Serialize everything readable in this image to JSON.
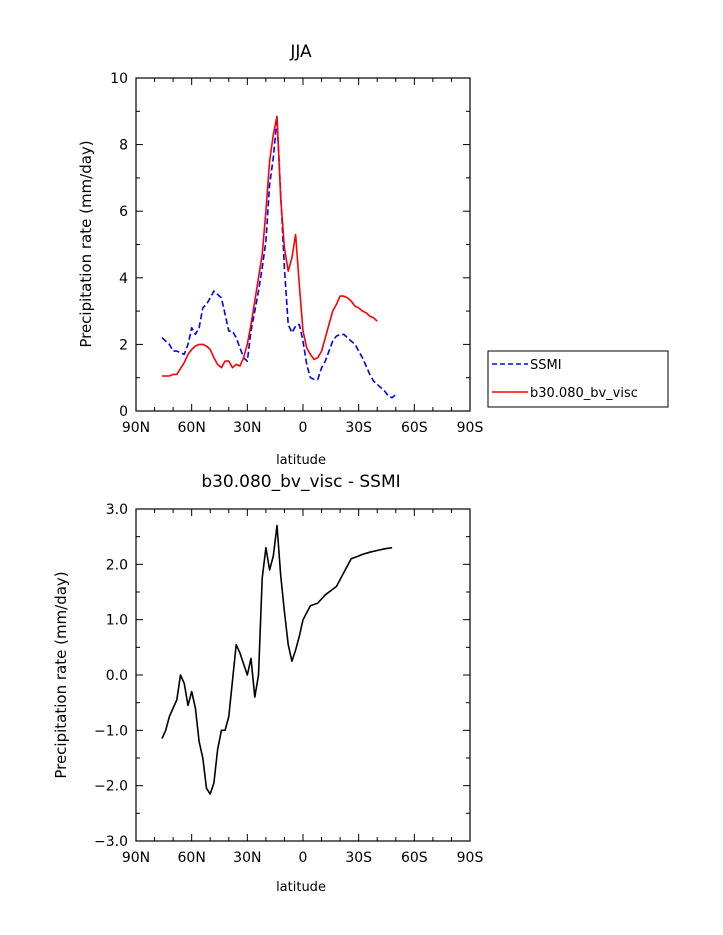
{
  "chart_data": [
    {
      "type": "line",
      "title": "JJA",
      "xlabel": "latitude",
      "ylabel": "Precipitation rate (mm/day)",
      "xlim": [
        90,
        -90
      ],
      "ylim": [
        0,
        10
      ],
      "x_ticks": [
        {
          "value": 90,
          "label": "90N"
        },
        {
          "value": 60,
          "label": "60N"
        },
        {
          "value": 30,
          "label": "30N"
        },
        {
          "value": 0,
          "label": "0"
        },
        {
          "value": -30,
          "label": "30S"
        },
        {
          "value": -60,
          "label": "60S"
        },
        {
          "value": -90,
          "label": "90S"
        }
      ],
      "y_ticks": [
        {
          "value": 0,
          "label": "0"
        },
        {
          "value": 2,
          "label": "2"
        },
        {
          "value": 4,
          "label": "4"
        },
        {
          "value": 6,
          "label": "6"
        },
        {
          "value": 8,
          "label": "8"
        },
        {
          "value": 10,
          "label": "10"
        }
      ],
      "legend_position": "right",
      "series": [
        {
          "name": "SSMI",
          "color": "#0000ff",
          "dash": "dashed",
          "x": [
            76,
            72,
            70,
            68,
            64,
            62,
            60,
            58,
            56,
            54,
            52,
            50,
            48,
            46,
            44,
            42,
            40,
            38,
            36,
            34,
            32,
            30,
            28,
            26,
            24,
            22,
            20,
            18,
            16,
            14,
            12,
            10,
            8,
            6,
            4,
            2,
            0,
            -2,
            -4,
            -6,
            -8,
            -10,
            -12,
            -14,
            -16,
            -18,
            -20,
            -22,
            -24,
            -26,
            -28,
            -30,
            -32,
            -34,
            -36,
            -38,
            -40,
            -42,
            -44,
            -46,
            -48,
            -50,
            -52,
            -54,
            -56,
            -58,
            -60,
            -62,
            -64,
            -66
          ],
          "values": [
            2.2,
            2.0,
            1.8,
            1.8,
            1.7,
            2.0,
            2.5,
            2.3,
            2.5,
            3.1,
            3.2,
            3.4,
            3.6,
            3.5,
            3.4,
            2.9,
            2.4,
            2.4,
            2.2,
            1.9,
            1.6,
            1.5,
            2.4,
            3.0,
            3.6,
            4.3,
            5.1,
            6.8,
            7.6,
            8.8,
            6.5,
            4.3,
            2.6,
            2.35,
            2.55,
            2.6,
            2.1,
            1.4,
            1.0,
            0.95,
            0.95,
            1.3,
            1.5,
            1.8,
            2.1,
            2.25,
            2.3,
            2.3,
            2.2,
            2.1,
            2.0,
            1.8,
            1.6,
            1.35,
            1.1,
            0.9,
            0.8,
            0.7,
            0.6,
            0.45,
            0.4,
            0.5,
            null,
            null,
            null,
            null,
            null,
            null,
            null,
            null
          ]
        },
        {
          "name": "b30.080_bv_visc",
          "color": "#ff0000",
          "dash": "solid",
          "x": [
            76,
            72,
            70,
            68,
            64,
            62,
            60,
            58,
            56,
            54,
            52,
            50,
            48,
            46,
            44,
            42,
            40,
            38,
            36,
            34,
            32,
            30,
            28,
            26,
            24,
            22,
            20,
            18,
            16,
            14,
            12,
            10,
            8,
            6,
            4,
            2,
            0,
            -2,
            -4,
            -6,
            -8,
            -10,
            -12,
            -14,
            -16,
            -18,
            -20,
            -22,
            -24,
            -26,
            -28,
            -30,
            -32,
            -34,
            -36,
            -38,
            -40,
            -42,
            -44,
            -46,
            -48,
            -50,
            -52,
            -54,
            -56,
            -58,
            -60,
            -62,
            -64,
            -66
          ],
          "values": [
            1.05,
            1.05,
            1.1,
            1.1,
            1.45,
            1.7,
            1.85,
            1.95,
            2.0,
            2.0,
            1.95,
            1.85,
            1.6,
            1.4,
            1.3,
            1.5,
            1.5,
            1.3,
            1.4,
            1.35,
            1.6,
            2.0,
            2.6,
            3.3,
            4.0,
            4.7,
            6.0,
            7.5,
            8.3,
            8.85,
            6.4,
            4.9,
            4.2,
            4.6,
            5.3,
            3.8,
            2.4,
            1.9,
            1.7,
            1.55,
            1.6,
            1.8,
            2.2,
            2.6,
            3.0,
            3.2,
            3.45,
            3.45,
            3.4,
            3.3,
            3.15,
            3.1,
            3.0,
            2.95,
            2.85,
            2.8,
            2.7,
            null,
            null,
            null,
            null,
            null,
            null,
            null,
            null,
            null,
            null,
            null,
            null,
            null
          ]
        }
      ]
    },
    {
      "type": "line",
      "title": "b30.080_bv_visc - SSMI",
      "xlabel": "latitude",
      "ylabel": "Precipitation rate (mm/day)",
      "xlim": [
        90,
        -90
      ],
      "ylim": [
        -3,
        3
      ],
      "x_ticks": [
        {
          "value": 90,
          "label": "90N"
        },
        {
          "value": 60,
          "label": "60N"
        },
        {
          "value": 30,
          "label": "30N"
        },
        {
          "value": 0,
          "label": "0"
        },
        {
          "value": -30,
          "label": "30S"
        },
        {
          "value": -60,
          "label": "60S"
        },
        {
          "value": -90,
          "label": "90S"
        }
      ],
      "y_ticks": [
        {
          "value": -3,
          "label": "−3.0"
        },
        {
          "value": -2,
          "label": "−2.0"
        },
        {
          "value": -1,
          "label": "−1.0"
        },
        {
          "value": 0,
          "label": "0.0"
        },
        {
          "value": 1,
          "label": "1.0"
        },
        {
          "value": 2,
          "label": "2.0"
        },
        {
          "value": 3,
          "label": "3.0"
        }
      ],
      "series": [
        {
          "color": "#000000",
          "dash": "solid",
          "x": [
            76,
            74,
            72,
            70,
            68,
            66,
            64,
            62,
            60,
            58,
            56,
            54,
            52,
            50,
            48,
            46,
            44,
            42,
            40,
            38,
            36,
            34,
            32,
            30,
            28,
            26,
            24,
            22,
            20,
            18,
            16,
            14,
            12,
            10,
            8,
            6,
            4,
            2,
            0,
            -4,
            -8,
            -12,
            -18,
            -22,
            -26,
            -30,
            -32,
            -34,
            -36,
            -40,
            -44,
            -48,
            -52,
            -56,
            -60,
            -64,
            -66
          ],
          "values": [
            -1.15,
            -1.0,
            -0.75,
            -0.6,
            -0.45,
            0.0,
            -0.15,
            -0.55,
            -0.3,
            -0.6,
            -1.2,
            -1.5,
            -2.05,
            -2.15,
            -1.95,
            -1.35,
            -1.0,
            -1.0,
            -0.75,
            -0.1,
            0.55,
            0.4,
            0.2,
            0.0,
            0.3,
            -0.4,
            0.0,
            1.75,
            2.3,
            1.9,
            2.15,
            2.7,
            1.8,
            1.15,
            0.55,
            0.25,
            0.45,
            0.7,
            1.0,
            1.25,
            1.3,
            1.45,
            1.6,
            1.85,
            2.1,
            2.15,
            2.18,
            2.2,
            2.22,
            2.25,
            2.28,
            2.3,
            null,
            null,
            null,
            null,
            null
          ]
        }
      ]
    }
  ]
}
